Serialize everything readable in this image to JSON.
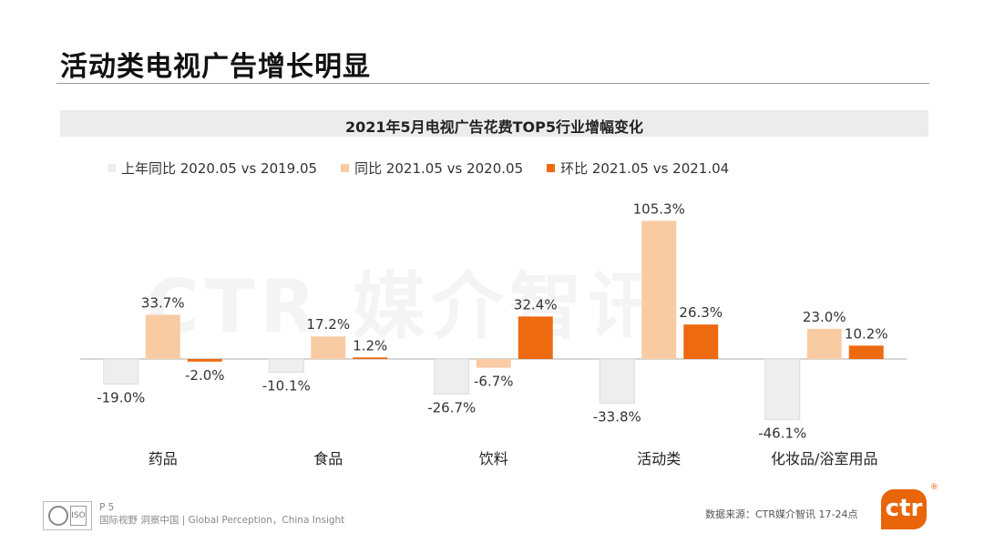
{
  "page": {
    "title": "活动类电视广告增长明显",
    "watermark": "CTR 媒介智讯"
  },
  "chart_data": {
    "type": "bar",
    "title": "2021年5月电视广告花费TOP5行业增幅变化",
    "categories": [
      "药品",
      "食品",
      "饮料",
      "活动类",
      "化妆品/浴室用品"
    ],
    "series": [
      {
        "name": "上年同比 2020.05 vs 2019.05",
        "color": "#eeeeee",
        "values": [
          -19.0,
          -10.1,
          -26.7,
          -33.8,
          -46.1
        ]
      },
      {
        "name": "同比 2021.05 vs 2020.05",
        "color": "#f9cba3",
        "values": [
          33.7,
          17.2,
          -6.7,
          105.3,
          23.0
        ]
      },
      {
        "name": "环比 2021.05 vs 2021.04",
        "color": "#ee6a10",
        "values": [
          -2.0,
          1.2,
          32.4,
          26.3,
          10.2
        ]
      }
    ],
    "value_suffix": "%",
    "ylim": [
      -50,
      110
    ],
    "grid": false,
    "legend": "top-left"
  },
  "footer": {
    "page_number": "P 5",
    "tagline": "国际视野  洞察中国 |  Global Perception，China Insight",
    "badge_text": "ISO",
    "source": "数据来源：CTR媒介智讯    17-24点",
    "brand": "ctr",
    "brand_mark": "®"
  }
}
